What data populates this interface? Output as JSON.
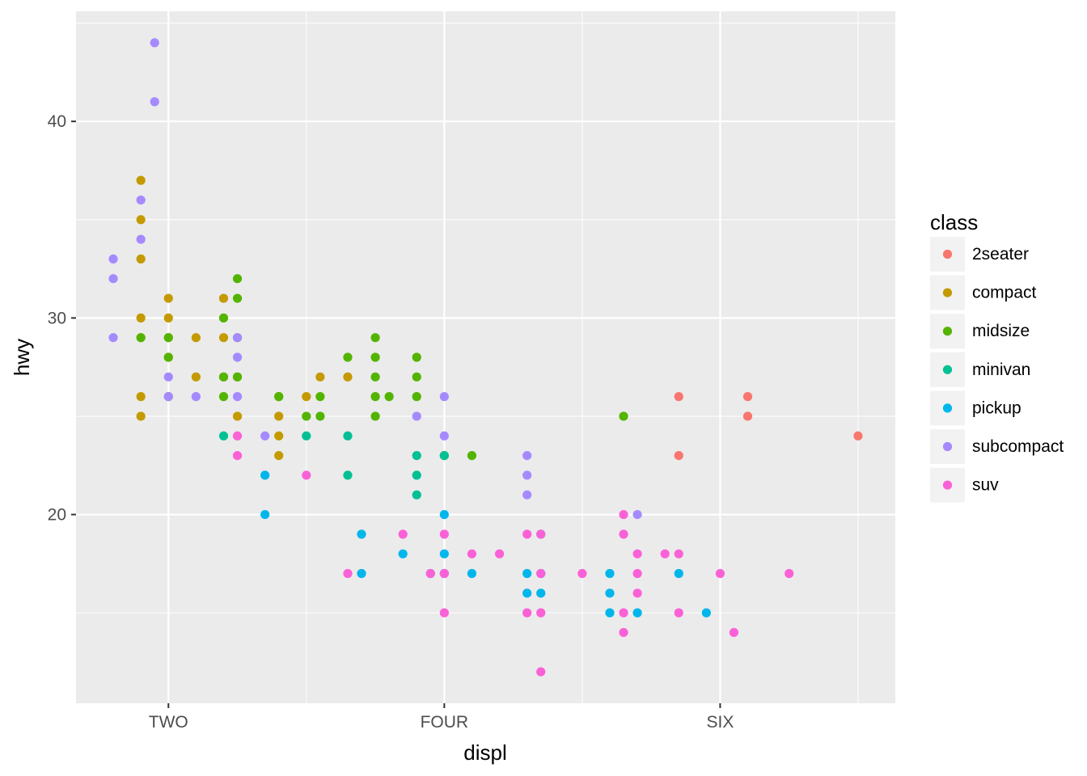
{
  "chart_data": {
    "type": "scatter",
    "xlabel": "displ",
    "ylabel": "hwy",
    "xlim": [
      1.33,
      7.27
    ],
    "ylim": [
      10.4,
      45.6
    ],
    "x_ticks": [
      {
        "value": 2,
        "label": "TWO"
      },
      {
        "value": 4,
        "label": "FOUR"
      },
      {
        "value": 6,
        "label": "SIX"
      }
    ],
    "y_ticks": [
      {
        "value": 20,
        "label": "20"
      },
      {
        "value": 30,
        "label": "30"
      },
      {
        "value": 40,
        "label": "40"
      }
    ],
    "grid": true,
    "legend": {
      "title": "class",
      "position": "right"
    },
    "series": [
      {
        "name": "2seater",
        "color": "#F8766D",
        "points": [
          [
            5.7,
            26
          ],
          [
            5.7,
            23
          ],
          [
            6.2,
            26
          ],
          [
            6.2,
            25
          ],
          [
            7.0,
            24
          ]
        ]
      },
      {
        "name": "compact",
        "color": "#C49A00",
        "points": [
          [
            1.8,
            29
          ],
          [
            1.8,
            26
          ],
          [
            2.0,
            29
          ],
          [
            2.0,
            26
          ],
          [
            2.0,
            31
          ],
          [
            2.0,
            30
          ],
          [
            2.0,
            28
          ],
          [
            2.2,
            27
          ],
          [
            2.2,
            29
          ],
          [
            2.4,
            31
          ],
          [
            2.4,
            27
          ],
          [
            2.4,
            29
          ],
          [
            2.5,
            27
          ],
          [
            2.5,
            25
          ],
          [
            2.8,
            25
          ],
          [
            2.8,
            24
          ],
          [
            2.8,
            23
          ],
          [
            3.0,
            26
          ],
          [
            3.1,
            27
          ],
          [
            3.3,
            27
          ],
          [
            1.8,
            30
          ],
          [
            1.8,
            33
          ],
          [
            1.8,
            35
          ],
          [
            1.8,
            37
          ],
          [
            1.8,
            25
          ]
        ]
      },
      {
        "name": "midsize",
        "color": "#53B400",
        "points": [
          [
            1.8,
            29
          ],
          [
            2.0,
            28
          ],
          [
            2.0,
            29
          ],
          [
            2.4,
            26
          ],
          [
            2.4,
            30
          ],
          [
            2.5,
            32
          ],
          [
            2.5,
            31
          ],
          [
            2.8,
            26
          ],
          [
            3.0,
            25
          ],
          [
            3.1,
            26
          ],
          [
            3.3,
            28
          ],
          [
            3.5,
            29
          ],
          [
            3.5,
            28
          ],
          [
            3.5,
            27
          ],
          [
            3.5,
            26
          ],
          [
            3.5,
            25
          ],
          [
            3.6,
            26
          ],
          [
            3.8,
            28
          ],
          [
            3.8,
            27
          ],
          [
            3.8,
            26
          ],
          [
            4.0,
            23
          ],
          [
            4.2,
            23
          ],
          [
            5.3,
            25
          ],
          [
            2.4,
            27
          ],
          [
            2.5,
            29
          ],
          [
            2.5,
            27
          ],
          [
            3.1,
            25
          ],
          [
            2.8,
            26
          ]
        ]
      },
      {
        "name": "minivan",
        "color": "#00C094",
        "points": [
          [
            2.4,
            24
          ],
          [
            3.0,
            24
          ],
          [
            3.3,
            24
          ],
          [
            3.3,
            22
          ],
          [
            3.8,
            23
          ],
          [
            3.8,
            22
          ],
          [
            3.8,
            21
          ],
          [
            4.0,
            23
          ]
        ]
      },
      {
        "name": "pickup",
        "color": "#00B6EB",
        "points": [
          [
            2.7,
            22
          ],
          [
            2.7,
            20
          ],
          [
            3.4,
            19
          ],
          [
            3.4,
            17
          ],
          [
            3.7,
            18
          ],
          [
            3.9,
            17
          ],
          [
            4.0,
            20
          ],
          [
            4.0,
            18
          ],
          [
            4.0,
            17
          ],
          [
            4.2,
            17
          ],
          [
            4.6,
            17
          ],
          [
            4.6,
            16
          ],
          [
            4.7,
            17
          ],
          [
            4.7,
            16
          ],
          [
            4.7,
            19
          ],
          [
            5.2,
            17
          ],
          [
            5.2,
            16
          ],
          [
            5.2,
            15
          ],
          [
            5.4,
            15
          ],
          [
            5.7,
            17
          ],
          [
            5.9,
            15
          ]
        ]
      },
      {
        "name": "subcompact",
        "color": "#A58AFF",
        "points": [
          [
            1.6,
            33
          ],
          [
            1.6,
            32
          ],
          [
            1.6,
            29
          ],
          [
            1.8,
            36
          ],
          [
            1.8,
            34
          ],
          [
            1.9,
            44
          ],
          [
            1.9,
            41
          ],
          [
            2.0,
            27
          ],
          [
            2.0,
            26
          ],
          [
            2.2,
            26
          ],
          [
            2.5,
            29
          ],
          [
            2.5,
            28
          ],
          [
            2.5,
            26
          ],
          [
            2.7,
            24
          ],
          [
            3.8,
            25
          ],
          [
            4.0,
            26
          ],
          [
            4.0,
            24
          ],
          [
            4.6,
            23
          ],
          [
            4.6,
            22
          ],
          [
            4.6,
            21
          ],
          [
            5.4,
            20
          ]
        ]
      },
      {
        "name": "suv",
        "color": "#FB61D7",
        "points": [
          [
            2.5,
            24
          ],
          [
            2.5,
            23
          ],
          [
            3.0,
            22
          ],
          [
            3.3,
            17
          ],
          [
            3.7,
            19
          ],
          [
            3.9,
            17
          ],
          [
            4.0,
            19
          ],
          [
            4.0,
            17
          ],
          [
            4.0,
            15
          ],
          [
            4.2,
            18
          ],
          [
            4.4,
            18
          ],
          [
            4.6,
            19
          ],
          [
            4.6,
            15
          ],
          [
            4.7,
            19
          ],
          [
            4.7,
            17
          ],
          [
            4.7,
            15
          ],
          [
            4.7,
            12
          ],
          [
            5.0,
            17
          ],
          [
            5.3,
            20
          ],
          [
            5.3,
            19
          ],
          [
            5.3,
            15
          ],
          [
            5.3,
            14
          ],
          [
            5.4,
            18
          ],
          [
            5.4,
            17
          ],
          [
            5.4,
            16
          ],
          [
            5.6,
            18
          ],
          [
            5.7,
            18
          ],
          [
            5.7,
            15
          ],
          [
            6.0,
            17
          ],
          [
            6.1,
            14
          ],
          [
            6.5,
            17
          ]
        ]
      }
    ]
  }
}
